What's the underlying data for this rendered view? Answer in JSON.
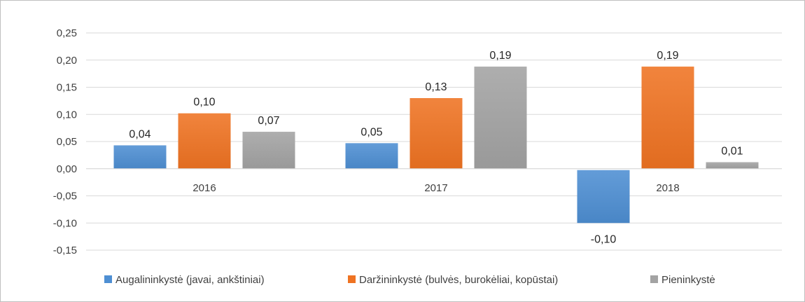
{
  "chart_data": {
    "type": "bar",
    "categories": [
      "2016",
      "2017",
      "2018"
    ],
    "series": [
      {
        "name": "Augalininkystė (javai, ankštiniai)",
        "values": [
          0.043,
          0.047,
          -0.1
        ],
        "labels": [
          "0,04",
          "0,05",
          "-0,10"
        ],
        "color": "#4e8fd3"
      },
      {
        "name": "Daržininkystė (bulvės, burokėliai, kopūstai)",
        "values": [
          0.102,
          0.13,
          0.188
        ],
        "labels": [
          "0,10",
          "0,13",
          "0,19"
        ],
        "color": "#ef7322"
      },
      {
        "name": "Pieninkystė",
        "values": [
          0.068,
          0.188,
          0.012
        ],
        "labels": [
          "0,07",
          "0,19",
          "0,01"
        ],
        "color": "#a3a3a3"
      }
    ],
    "ylim": [
      -0.15,
      0.25
    ],
    "yticks": [
      0.25,
      0.2,
      0.15,
      0.1,
      0.05,
      0.0,
      -0.05,
      -0.1,
      -0.15
    ],
    "ytick_labels": [
      "0,25",
      "0,20",
      "0,15",
      "0,10",
      "0,05",
      "0,00",
      "-0,05",
      "-0,10",
      "-0,15"
    ],
    "grid": true,
    "legend": "bottom",
    "title": "",
    "xlabel": "",
    "ylabel": ""
  }
}
